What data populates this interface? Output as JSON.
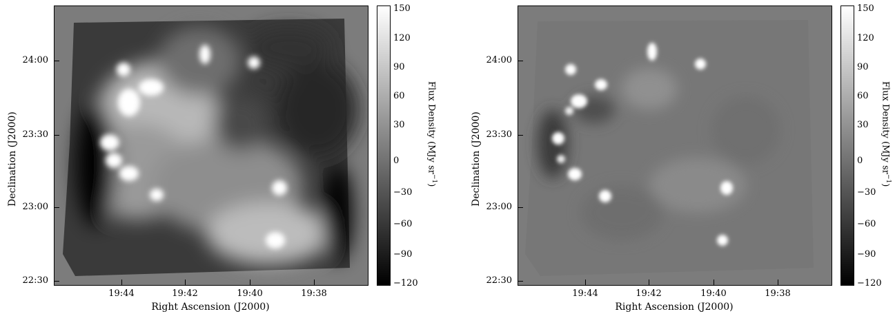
{
  "colors": {
    "background": "#7c7c7c",
    "dark": "#000000",
    "bright": "#ffffff"
  },
  "panels": [
    {
      "id": "left",
      "xlabel": "Right Ascension (J2000)",
      "ylabel": "Declination (J2000)",
      "xticks": [
        "19:44",
        "19:42",
        "19:40",
        "19:38"
      ],
      "yticks": [
        "24:00",
        "23:30",
        "23:00",
        "22:30"
      ],
      "colorbar": {
        "title": "Flux Density (MJy sr",
        "title_sup": "−1",
        "title_end": ")",
        "ticks": [
          "150",
          "120",
          "90",
          "60",
          "30",
          "0",
          "−30",
          "−60",
          "−90",
          "−120"
        ]
      }
    },
    {
      "id": "right",
      "xlabel": "Right Ascension (J2000)",
      "ylabel": "Declination (J2000)",
      "xticks": [
        "19:44",
        "19:42",
        "19:40",
        "19:38"
      ],
      "yticks": [
        "24:00",
        "23:30",
        "23:00",
        "22:30"
      ],
      "colorbar": {
        "title": "Flux Density (MJy sr",
        "title_sup": "−1",
        "title_end": ")",
        "ticks": [
          "150",
          "120",
          "90",
          "60",
          "30",
          "0",
          "−30",
          "−60",
          "−90",
          "−120"
        ]
      }
    }
  ]
}
